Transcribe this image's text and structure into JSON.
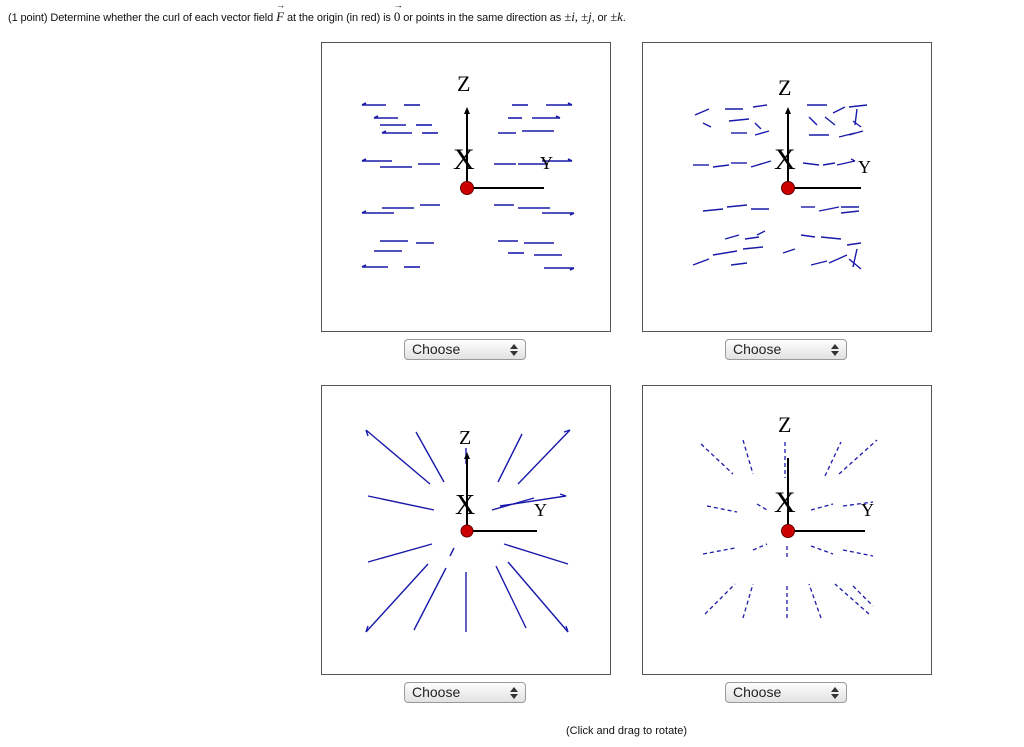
{
  "question": {
    "points": "(1 point)",
    "prefix": "Determine whether the curl of each vector field",
    "field_symbol": "F",
    "middle": "at the origin (in red) is",
    "zero_symbol": "0",
    "suffix": "or points in the same direction as",
    "options_text": "±i, ±j",
    "or_text": ", or",
    "last_option": "±k",
    "end": "."
  },
  "plots": [
    {
      "axis_z": "Z",
      "axis_x": "X",
      "axis_y": "Y",
      "select_value": "Choose"
    },
    {
      "axis_z": "Z",
      "axis_x": "X",
      "axis_y": "Y",
      "select_value": "Choose"
    },
    {
      "axis_z": "Z",
      "axis_x": "X",
      "axis_y": "Y",
      "select_value": "Choose"
    },
    {
      "axis_z": "Z",
      "axis_x": "X",
      "axis_y": "Y",
      "select_value": "Choose"
    }
  ],
  "hint": "(Click and drag to rotate)",
  "colors": {
    "arrow": "#1a1aaa",
    "origin": "#cc0000",
    "axis": "#000000"
  }
}
